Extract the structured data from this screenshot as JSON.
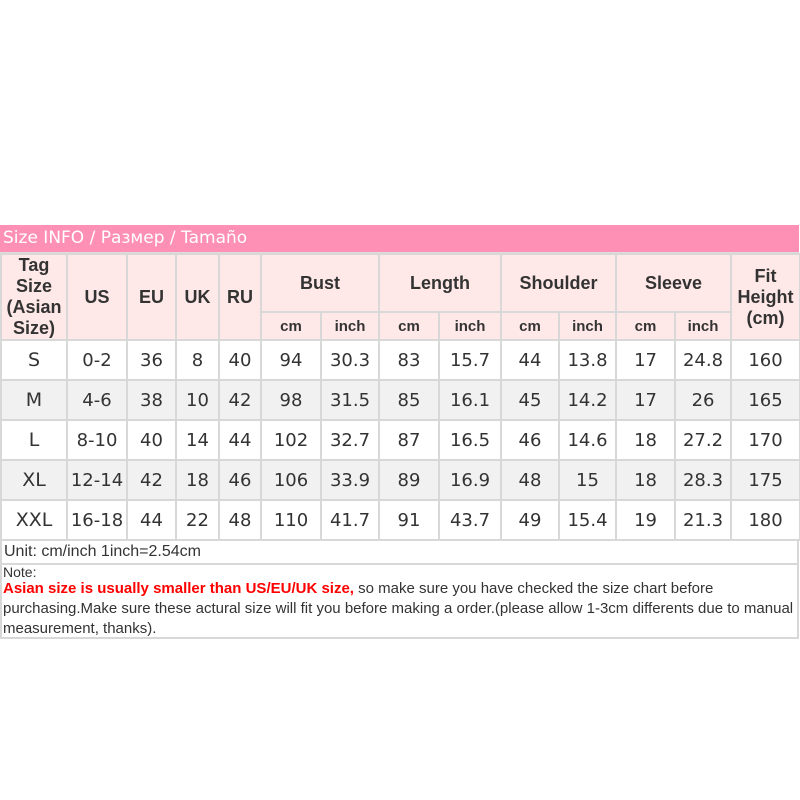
{
  "title": "Size INFO / Размер / Tamaño",
  "headers": {
    "tag": "Tag Size (Asian Size)",
    "us": "US",
    "eu": "EU",
    "uk": "UK",
    "ru": "RU",
    "bust": "Bust",
    "length": "Length",
    "shoulder": "Shoulder",
    "sleeve": "Sleeve",
    "fit": "Fit Height (cm)",
    "cm": "cm",
    "inch": "inch"
  },
  "rows": [
    [
      "S",
      "0-2",
      "36",
      "8",
      "40",
      "94",
      "30.3",
      "83",
      "15.7",
      "44",
      "13.8",
      "17",
      "24.8",
      "160"
    ],
    [
      "M",
      "4-6",
      "38",
      "10",
      "42",
      "98",
      "31.5",
      "85",
      "16.1",
      "45",
      "14.2",
      "17",
      "26",
      "165"
    ],
    [
      "L",
      "8-10",
      "40",
      "14",
      "44",
      "102",
      "32.7",
      "87",
      "16.5",
      "46",
      "14.6",
      "18",
      "27.2",
      "170"
    ],
    [
      "XL",
      "12-14",
      "42",
      "18",
      "46",
      "106",
      "33.9",
      "89",
      "16.9",
      "48",
      "15",
      "18",
      "28.3",
      "175"
    ],
    [
      "XXL",
      "16-18",
      "44",
      "22",
      "48",
      "110",
      "41.7",
      "91",
      "43.7",
      "49",
      "15.4",
      "19",
      "21.3",
      "180"
    ]
  ],
  "unit": "Unit: cm/inch 1inch=2.54cm",
  "note": {
    "label": "Note:",
    "warning": "Asian size is usually smaller than US/EU/UK size,",
    "text": " so make sure you have checked the size chart before purchasing.Make sure these actural size will fit you before making a order.(please allow 1-3cm differents due to manual measurement, thanks)."
  },
  "colors": {
    "title_bg": "#fe8fb5",
    "header_bg": "#ffe9e8",
    "warning": "#ff0000"
  }
}
